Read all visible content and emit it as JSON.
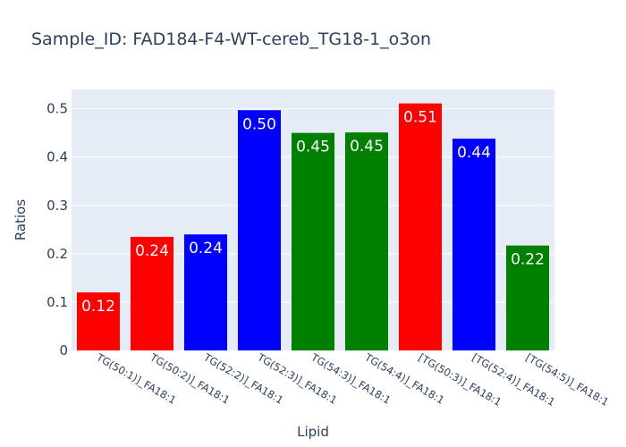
{
  "chart_data": {
    "type": "bar",
    "title": "Sample_ID: FAD184-F4-WT-cereb_TG18-1_o3on",
    "xlabel": "Lipid",
    "ylabel": "Ratios",
    "ylim": [
      0,
      0.54
    ],
    "yticks": [
      {
        "value": 0,
        "label": "0"
      },
      {
        "value": 0.1,
        "label": "0.1"
      },
      {
        "value": 0.2,
        "label": "0.2"
      },
      {
        "value": 0.3,
        "label": "0.3"
      },
      {
        "value": 0.4,
        "label": "0.4"
      },
      {
        "value": 0.5,
        "label": "0.5"
      }
    ],
    "grid": true,
    "plot_background": "#e5ecf6",
    "categories": [
      "TG(50:1)]_FA18:1",
      "TG(50:2)]_FA18:1",
      "TG(52:2)]_FA18:1",
      "TG(52:3)]_FA18:1",
      "TG(54:3)]_FA18:1",
      "TG(54:4)]_FA18:1",
      "[TG(50:3)]_FA18:1",
      "[TG(52:4)]_FA18:1",
      "[TG(54:5)]_FA18:1"
    ],
    "values": [
      0.12,
      0.235,
      0.24,
      0.497,
      0.45,
      0.451,
      0.511,
      0.438,
      0.217
    ],
    "value_labels": [
      "0.12",
      "0.24",
      "0.24",
      "0.50",
      "0.45",
      "0.45",
      "0.51",
      "0.44",
      "0.22"
    ],
    "colors": [
      "#ff0000",
      "#ff0000",
      "#0000ff",
      "#0000ff",
      "#008000",
      "#008000",
      "#ff0000",
      "#0000ff",
      "#008000"
    ]
  }
}
